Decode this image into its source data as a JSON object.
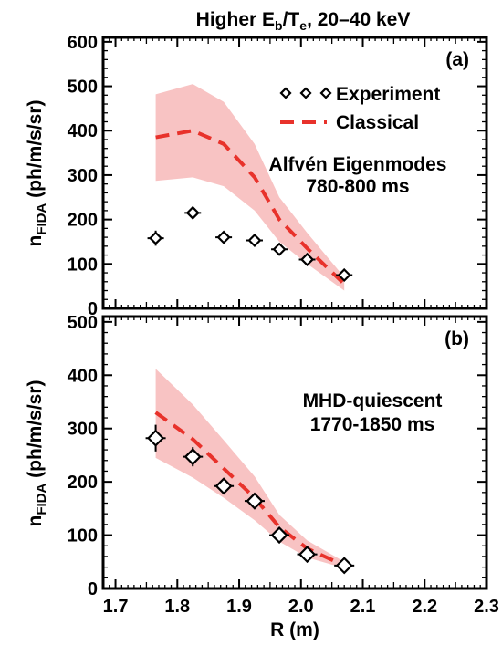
{
  "title": "Higher E",
  "title_sub_b": "b",
  "title_mid": "/T",
  "title_sub_e": "e",
  "title_tail": ", 20–40 keV",
  "colors": {
    "band": "#f7b9b9",
    "classical": "#e8322b",
    "marker": "#000000"
  },
  "xlabel": "R (m)",
  "x_ticks": [
    "1.7",
    "1.8",
    "1.9",
    "2.0",
    "2.1",
    "2.2",
    "2.3"
  ],
  "panels": [
    {
      "tag": "(a)",
      "ylabel_main": "n",
      "ylabel_sub": "FIDA",
      "ylabel_tail": " (ph/m/s/sr)",
      "y_ticks": [
        "0",
        "100",
        "200",
        "300",
        "400",
        "500",
        "600"
      ],
      "legend": {
        "experiment": "Experiment",
        "classical": "Classical"
      },
      "annotation": [
        "Alfvén Eigenmodes",
        "780-800 ms"
      ]
    },
    {
      "tag": "(b)",
      "ylabel_main": "n",
      "ylabel_sub": "FIDA",
      "ylabel_tail": " (ph/m/s/sr)",
      "y_ticks": [
        "0",
        "100",
        "200",
        "300",
        "400",
        "500"
      ],
      "annotation": [
        "MHD-quiescent",
        "1770-1850 ms"
      ]
    }
  ],
  "chart_data": [
    {
      "type": "scatter",
      "panel": "(a)",
      "xlim": [
        1.68,
        2.3
      ],
      "ylim": [
        0,
        610
      ],
      "series": [
        {
          "name": "Experiment",
          "x": [
            1.765,
            1.825,
            1.875,
            1.925,
            1.965,
            2.01,
            2.07
          ],
          "y": [
            158,
            215,
            160,
            153,
            133,
            110,
            75
          ],
          "yerr": [
            17,
            10,
            5,
            5,
            12,
            8,
            5
          ]
        },
        {
          "name": "Classical",
          "x": [
            1.765,
            1.825,
            1.875,
            1.925,
            1.965,
            2.01,
            2.07
          ],
          "y": [
            385,
            400,
            370,
            295,
            200,
            135,
            55
          ],
          "band_low": [
            287,
            295,
            275,
            220,
            150,
            100,
            40
          ],
          "band_high": [
            482,
            505,
            465,
            370,
            250,
            170,
            70
          ]
        }
      ]
    },
    {
      "type": "scatter",
      "panel": "(b)",
      "xlim": [
        1.68,
        2.3
      ],
      "ylim": [
        0,
        510
      ],
      "series": [
        {
          "name": "Experiment",
          "x": [
            1.765,
            1.825,
            1.875,
            1.925,
            1.965,
            2.01,
            2.07
          ],
          "y": [
            282,
            247,
            192,
            164,
            100,
            64,
            43
          ],
          "yerr": [
            25,
            18,
            5,
            5,
            13,
            5,
            3
          ]
        },
        {
          "name": "Classical",
          "x": [
            1.765,
            1.825,
            1.875,
            1.925,
            1.965,
            2.01,
            2.07
          ],
          "y": [
            330,
            280,
            225,
            170,
            115,
            75,
            43
          ],
          "band_low": [
            245,
            208,
            170,
            128,
            88,
            58,
            38
          ],
          "band_high": [
            412,
            345,
            278,
            210,
            138,
            90,
            50
          ]
        }
      ]
    }
  ]
}
